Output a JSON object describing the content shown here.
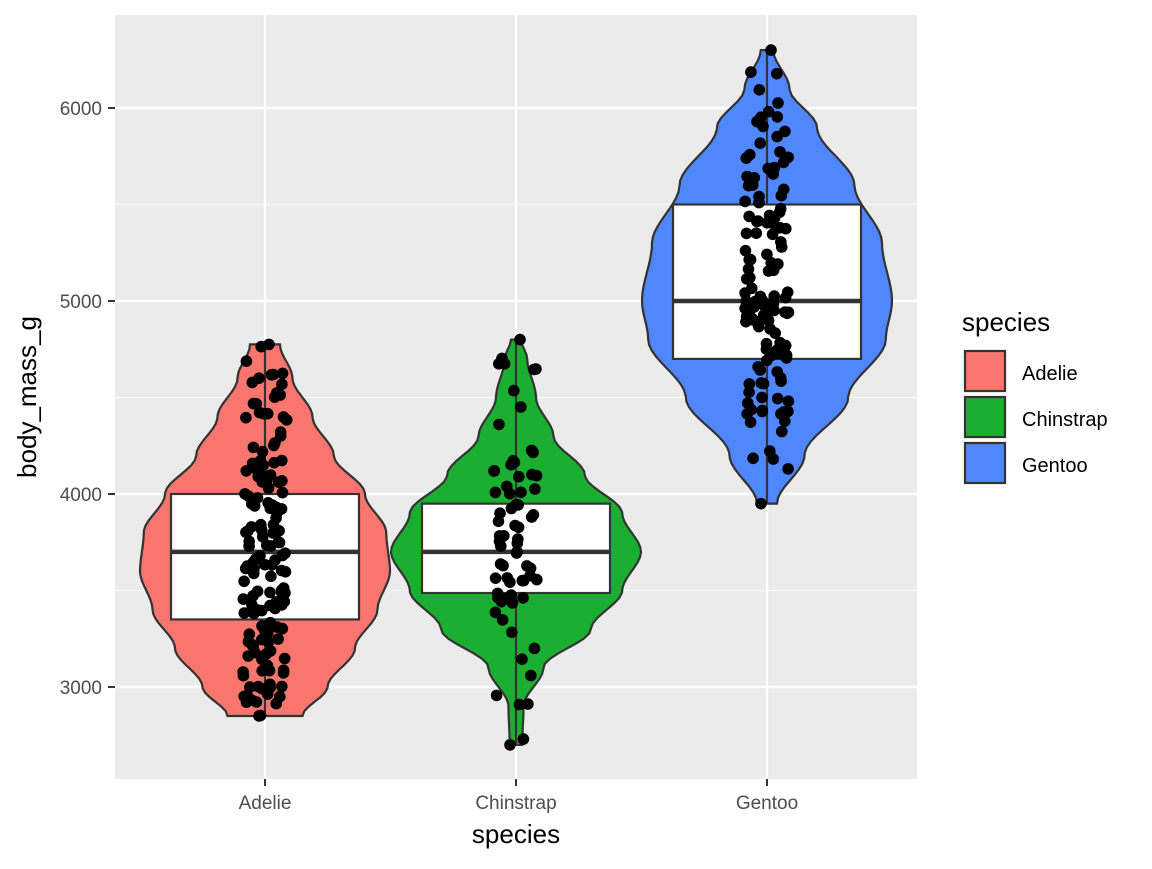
{
  "chart_data": {
    "type": "violin+boxplot+jitter",
    "title": "",
    "xlabel": "species",
    "ylabel": "body_mass_g",
    "categories": [
      "Adelie",
      "Chinstrap",
      "Gentoo"
    ],
    "ylim": [
      2525,
      6475
    ],
    "yticks": [
      3000,
      4000,
      5000,
      6000
    ],
    "ytick_labels": [
      "3000",
      "4000",
      "5000",
      "6000"
    ],
    "grid": true,
    "legend": {
      "title": "species",
      "position": "right",
      "entries": [
        {
          "label": "Adelie",
          "color": "#F8766D"
        },
        {
          "label": "Chinstrap",
          "color": "#1AAF30"
        },
        {
          "label": "Gentoo",
          "color": "#5086FE"
        }
      ]
    },
    "series": [
      {
        "name": "Adelie",
        "color": "#F8766D",
        "box": {
          "q1": 3350,
          "median": 3700,
          "q3": 4000,
          "whisker_low": 2850,
          "whisker_high": 4775
        },
        "violin_range": [
          2850,
          4775
        ],
        "violin_profile": [
          [
            2850,
            0.3
          ],
          [
            3000,
            0.5
          ],
          [
            3200,
            0.72
          ],
          [
            3400,
            0.9
          ],
          [
            3600,
            1.0
          ],
          [
            3800,
            0.97
          ],
          [
            4000,
            0.8
          ],
          [
            4200,
            0.55
          ],
          [
            4400,
            0.38
          ],
          [
            4600,
            0.22
          ],
          [
            4775,
            0.12
          ]
        ],
        "points_summary": "~150 jittered points, 2850–4775 g"
      },
      {
        "name": "Chinstrap",
        "color": "#1AAF30",
        "box": {
          "q1": 3487,
          "median": 3700,
          "q3": 3950,
          "whisker_low": 2700,
          "whisker_high": 4800
        },
        "violin_range": [
          2700,
          4800
        ],
        "violin_profile": [
          [
            2700,
            0.05
          ],
          [
            2900,
            0.06
          ],
          [
            3100,
            0.22
          ],
          [
            3300,
            0.6
          ],
          [
            3500,
            0.85
          ],
          [
            3700,
            1.0
          ],
          [
            3900,
            0.85
          ],
          [
            4100,
            0.55
          ],
          [
            4300,
            0.3
          ],
          [
            4500,
            0.16
          ],
          [
            4700,
            0.09
          ],
          [
            4800,
            0.04
          ]
        ],
        "points_summary": "~68 jittered points, 2700–4800 g"
      },
      {
        "name": "Gentoo",
        "color": "#5086FE",
        "box": {
          "q1": 4700,
          "median": 5000,
          "q3": 5500,
          "whisker_low": 3950,
          "whisker_high": 6300
        },
        "violin_range": [
          3950,
          6300
        ],
        "violin_profile": [
          [
            3950,
            0.08
          ],
          [
            4200,
            0.3
          ],
          [
            4500,
            0.65
          ],
          [
            4800,
            0.95
          ],
          [
            5000,
            1.0
          ],
          [
            5300,
            0.92
          ],
          [
            5600,
            0.7
          ],
          [
            5900,
            0.4
          ],
          [
            6100,
            0.18
          ],
          [
            6300,
            0.05
          ]
        ],
        "points_summary": "~123 jittered points, 3950–6300 g"
      }
    ]
  },
  "axes": {
    "x_title": "species",
    "y_title": "body_mass_g",
    "x_tick_labels": [
      "Adelie",
      "Chinstrap",
      "Gentoo"
    ],
    "y_tick_labels": [
      "3000",
      "4000",
      "5000",
      "6000"
    ]
  },
  "legend": {
    "title": "species",
    "items": [
      "Adelie",
      "Chinstrap",
      "Gentoo"
    ]
  }
}
